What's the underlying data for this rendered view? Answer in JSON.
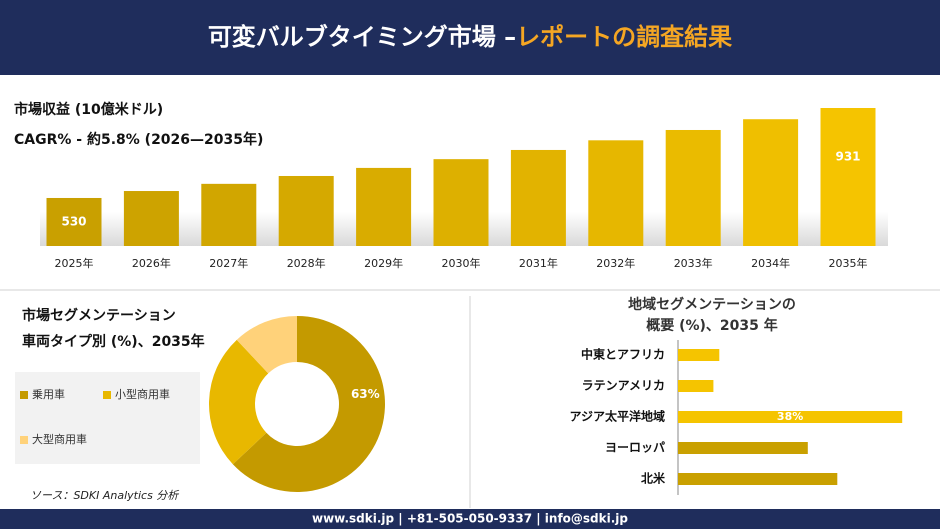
{
  "header": {
    "title": "可変バルブタイミング市場 –",
    "title_highlight": "レポートの調査結果"
  },
  "chart_data": [
    {
      "type": "bar",
      "title": "市場収益 (10億米ドル)",
      "subtitle": "CAGR% - 約5.8% (2026—2035年)",
      "categories": [
        "2025年",
        "2026年",
        "2027年",
        "2028年",
        "2029年",
        "2030年",
        "2031年",
        "2032年",
        "2033年",
        "2034年",
        "2035年"
      ],
      "values": [
        530,
        561,
        593,
        628,
        664,
        703,
        744,
        787,
        833,
        881,
        931
      ],
      "value_labels": [
        "530",
        null,
        null,
        null,
        null,
        null,
        null,
        null,
        null,
        null,
        "931"
      ],
      "colors": [
        "#c9a000",
        "#cda300",
        "#d1a600",
        "#d5a900",
        "#d9ac00",
        "#ddb000",
        "#e2b300",
        "#e6b700",
        "#eabb00",
        "#efbf00",
        "#f5c400"
      ],
      "ylim": [
        316,
        931
      ]
    },
    {
      "type": "donut",
      "title": "市場セグメンテーション",
      "subtitle": "車両タイプ別 (%)、2035年",
      "categories": [
        "乗用車",
        "小型商用車",
        "大型商用車"
      ],
      "values": [
        63,
        25,
        12
      ],
      "value_labels": [
        "63%",
        null,
        null
      ],
      "colors": [
        "#c49a00",
        "#e8b800",
        "#ffd27a"
      ]
    },
    {
      "type": "hbar",
      "title": "地域セグメンテーションの",
      "subtitle": "概要 (%)、2035 年",
      "categories": [
        "中東とアフリカ",
        "ラテンアメリカ",
        "アジア太平洋地域",
        "ヨーロッパ",
        "北米"
      ],
      "values": [
        7,
        6,
        38,
        22,
        27
      ],
      "value_labels": [
        null,
        null,
        "38%",
        null,
        null
      ],
      "colors": [
        "#f5c400",
        "#f5c400",
        "#f5c400",
        "#c9a000",
        "#c9a000"
      ],
      "xlim": [
        0,
        40
      ]
    }
  ],
  "footer": {
    "source": "ソース：SDKI Analytics 分析",
    "contact": "www.sdki.jp | +81-505-050-9337 | info@sdki.jp"
  }
}
